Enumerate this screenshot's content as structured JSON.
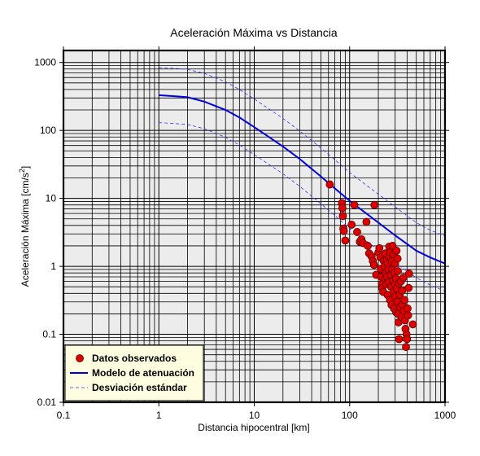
{
  "chart_data": {
    "type": "scatter",
    "title": "Aceleración Máxima vs Distancia",
    "xlabel": "Distancia hipocentral [km]",
    "ylabel_main": "Aceleración Máxima [cm/s",
    "ylabel_sup": "2",
    "ylabel_tail": "]",
    "xscale": "log",
    "yscale": "log",
    "xlim": [
      0.1,
      1000
    ],
    "ylim": [
      0.01,
      1500
    ],
    "xticks": [
      0.1,
      1,
      10,
      100,
      1000
    ],
    "xtick_labels": [
      "0.1",
      "1",
      "10",
      "100",
      "1000"
    ],
    "yticks": [
      0.01,
      0.1,
      1,
      10,
      100,
      1000
    ],
    "ytick_labels": [
      "0.01",
      "0.1",
      "1",
      "10",
      "100",
      "1000"
    ],
    "grid": true,
    "legend_position": "bottom-left",
    "colors": {
      "plot_background": "#ececec",
      "grid": "#000000",
      "observed_fill": "#dd0000",
      "observed_edge": "#550000",
      "model": "#0000dd",
      "deviation": "#3333ee",
      "legend_background": "#fffde0"
    },
    "series": [
      {
        "name": "Datos observados",
        "kind": "scatter",
        "points": [
          [
            62,
            16
          ],
          [
            83,
            8.5
          ],
          [
            84,
            7.2
          ],
          [
            85,
            5.5
          ],
          [
            86,
            3.6
          ],
          [
            87,
            3.3
          ],
          [
            90,
            2.4
          ],
          [
            105,
            4.1
          ],
          [
            112,
            8.0
          ],
          [
            120,
            3.2
          ],
          [
            128,
            2.3
          ],
          [
            133,
            2.5
          ],
          [
            138,
            2.2
          ],
          [
            150,
            4.5
          ],
          [
            155,
            2.0
          ],
          [
            160,
            1.55
          ],
          [
            170,
            1.4
          ],
          [
            175,
            1.2
          ],
          [
            180,
            1.05
          ],
          [
            182,
            8.0
          ],
          [
            190,
            0.75
          ],
          [
            200,
            1.6
          ],
          [
            205,
            1.85
          ],
          [
            210,
            1.35
          ],
          [
            212,
            0.92
          ],
          [
            215,
            0.7
          ],
          [
            218,
            0.55
          ],
          [
            220,
            0.48
          ],
          [
            225,
            0.42
          ],
          [
            228,
            1.2
          ],
          [
            232,
            1.0
          ],
          [
            235,
            0.65
          ],
          [
            238,
            1.55
          ],
          [
            240,
            0.8
          ],
          [
            242,
            0.55
          ],
          [
            245,
            1.25
          ],
          [
            248,
            0.7
          ],
          [
            250,
            0.38
          ],
          [
            252,
            1.1
          ],
          [
            255,
            0.9
          ],
          [
            258,
            0.58
          ],
          [
            260,
            1.95
          ],
          [
            262,
            1.4
          ],
          [
            265,
            0.32
          ],
          [
            268,
            1.6
          ],
          [
            270,
            0.75
          ],
          [
            272,
            0.5
          ],
          [
            275,
            0.27
          ],
          [
            278,
            1.2
          ],
          [
            280,
            0.9
          ],
          [
            282,
            2.0
          ],
          [
            285,
            0.62
          ],
          [
            288,
            0.42
          ],
          [
            290,
            1.5
          ],
          [
            292,
            0.24
          ],
          [
            295,
            0.8
          ],
          [
            298,
            0.55
          ],
          [
            300,
            1.1
          ],
          [
            302,
            0.36
          ],
          [
            305,
            0.66
          ],
          [
            308,
            0.21
          ],
          [
            310,
            1.7
          ],
          [
            312,
            0.47
          ],
          [
            315,
            0.3
          ],
          [
            318,
            1.3
          ],
          [
            320,
            0.85
          ],
          [
            322,
            0.2
          ],
          [
            325,
            0.15
          ],
          [
            328,
            0.56
          ],
          [
            330,
            0.085
          ],
          [
            335,
            0.38
          ],
          [
            340,
            0.25
          ],
          [
            345,
            0.6
          ],
          [
            350,
            0.18
          ],
          [
            355,
            0.44
          ],
          [
            360,
            0.27
          ],
          [
            365,
            0.68
          ],
          [
            370,
            0.22
          ],
          [
            375,
            0.32
          ],
          [
            380,
            0.16
          ],
          [
            385,
            0.12
          ],
          [
            390,
            0.065
          ],
          [
            395,
            0.1
          ],
          [
            400,
            0.085
          ],
          [
            405,
            0.24
          ],
          [
            410,
            0.19
          ],
          [
            415,
            0.48
          ],
          [
            420,
            0.78
          ],
          [
            460,
            0.14
          ]
        ]
      },
      {
        "name": "Modelo de atenuación",
        "kind": "line",
        "points": [
          [
            1,
            330
          ],
          [
            1.5,
            318
          ],
          [
            2,
            308
          ],
          [
            3,
            265
          ],
          [
            5,
            200
          ],
          [
            7,
            155
          ],
          [
            10,
            112
          ],
          [
            20,
            58
          ],
          [
            30,
            38
          ],
          [
            50,
            21
          ],
          [
            70,
            14
          ],
          [
            100,
            9.2
          ],
          [
            200,
            4.4
          ],
          [
            300,
            2.85
          ],
          [
            500,
            1.7
          ],
          [
            700,
            1.35
          ],
          [
            1000,
            1.1
          ]
        ]
      },
      {
        "name": "Desviación estándar",
        "kind": "dashed-line",
        "points": [
          [
            1,
            840
          ],
          [
            1.5,
            815
          ],
          [
            2,
            790
          ],
          [
            3,
            690
          ],
          [
            5,
            520
          ],
          [
            7,
            400
          ],
          [
            10,
            290
          ],
          [
            20,
            150
          ],
          [
            30,
            98
          ],
          [
            50,
            55
          ],
          [
            70,
            37
          ],
          [
            100,
            24
          ],
          [
            200,
            11.5
          ],
          [
            300,
            7.5
          ],
          [
            500,
            4.4
          ],
          [
            700,
            3.4
          ],
          [
            1000,
            2.8
          ]
        ]
      },
      {
        "kind": "dashed-line",
        "points": [
          [
            1,
            130
          ],
          [
            1.5,
            126
          ],
          [
            2,
            122
          ],
          [
            3,
            106
          ],
          [
            5,
            79
          ],
          [
            7,
            61
          ],
          [
            10,
            44
          ],
          [
            20,
            23
          ],
          [
            30,
            15
          ],
          [
            50,
            8.3
          ],
          [
            70,
            5.6
          ],
          [
            100,
            3.6
          ],
          [
            200,
            1.75
          ],
          [
            300,
            1.13
          ],
          [
            500,
            0.68
          ],
          [
            700,
            0.53
          ],
          [
            1000,
            0.43
          ]
        ]
      }
    ]
  }
}
